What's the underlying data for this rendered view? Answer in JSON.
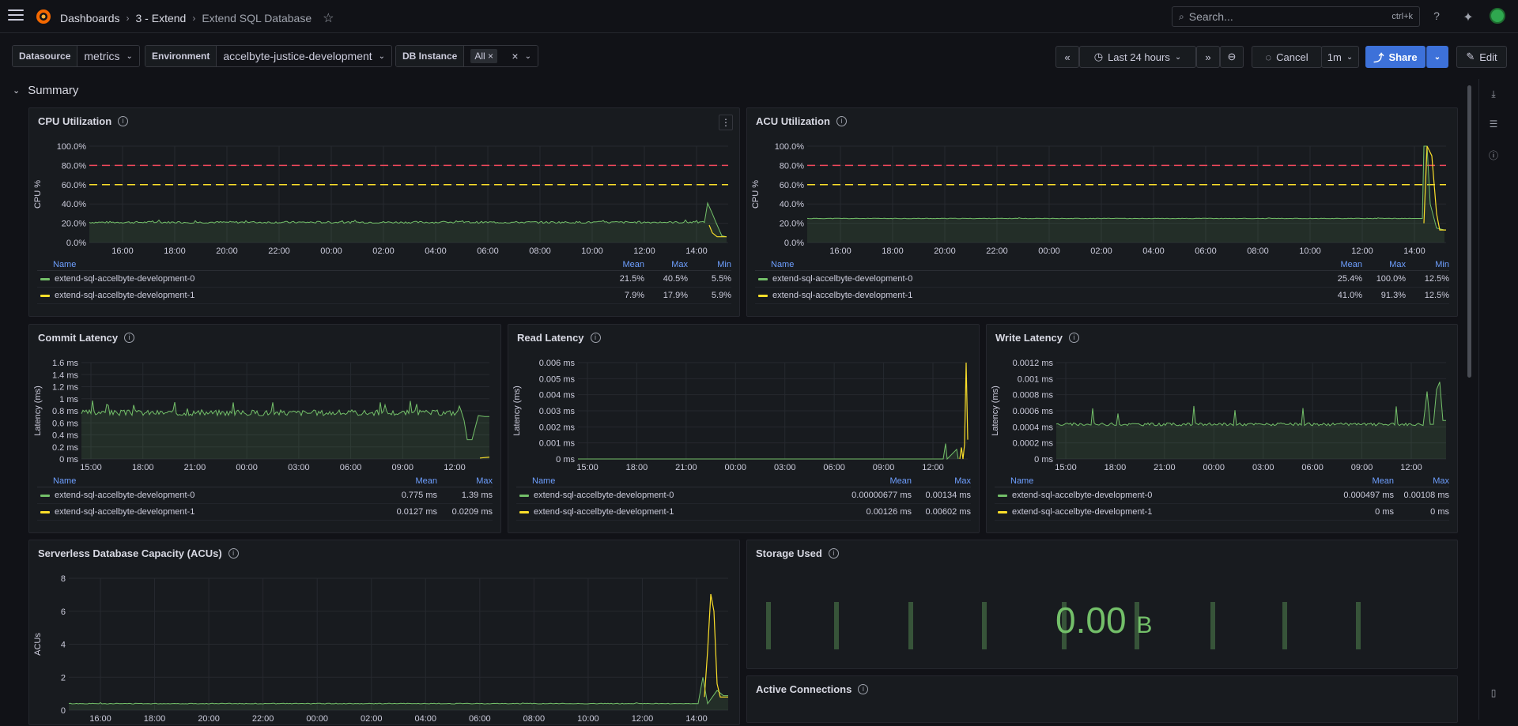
{
  "header": {
    "breadcrumbs": [
      "Dashboards",
      "3 - Extend",
      "Extend SQL Database"
    ],
    "search_placeholder": "Search...",
    "search_shortcut": "ctrl+k"
  },
  "variables": [
    {
      "label": "Datasource",
      "value": "metrics"
    },
    {
      "label": "Environment",
      "value": "accelbyte-justice-development"
    },
    {
      "label": "DB Instance",
      "value": "All"
    }
  ],
  "toolbar": {
    "time_range": "Last 24 hours",
    "cancel_label": "Cancel",
    "refresh_interval": "1m",
    "share_label": "Share",
    "edit_label": "Edit"
  },
  "section_title": "Summary",
  "colors": {
    "series0": "#73bf69",
    "series1": "#fade2a",
    "threshold_red": "#f2495c",
    "threshold_yellow": "#fade2a",
    "accent": "#3d71d9"
  },
  "panels": {
    "cpu": {
      "title": "CPU Utilization",
      "ylabel": "CPU %",
      "yticks": [
        "100.0%",
        "80.0%",
        "60.0%",
        "40.0%",
        "20.0%",
        "0.0%"
      ],
      "xticks": [
        "16:00",
        "18:00",
        "20:00",
        "22:00",
        "00:00",
        "02:00",
        "04:00",
        "06:00",
        "08:00",
        "10:00",
        "12:00",
        "14:00"
      ],
      "legend_cols": [
        "Name",
        "Mean",
        "Max",
        "Min"
      ],
      "rows": [
        {
          "name": "extend-sql-accelbyte-development-0",
          "vals": [
            "21.5%",
            "40.5%",
            "5.5%"
          ]
        },
        {
          "name": "extend-sql-accelbyte-development-1",
          "vals": [
            "7.9%",
            "17.9%",
            "5.9%"
          ]
        }
      ]
    },
    "acu": {
      "title": "ACU Utilization",
      "ylabel": "CPU %",
      "yticks": [
        "100.0%",
        "80.0%",
        "60.0%",
        "40.0%",
        "20.0%",
        "0.0%"
      ],
      "xticks": [
        "16:00",
        "18:00",
        "20:00",
        "22:00",
        "00:00",
        "02:00",
        "04:00",
        "06:00",
        "08:00",
        "10:00",
        "12:00",
        "14:00"
      ],
      "legend_cols": [
        "Name",
        "Mean",
        "Max",
        "Min"
      ],
      "rows": [
        {
          "name": "extend-sql-accelbyte-development-0",
          "vals": [
            "25.4%",
            "100.0%",
            "12.5%"
          ]
        },
        {
          "name": "extend-sql-accelbyte-development-1",
          "vals": [
            "41.0%",
            "91.3%",
            "12.5%"
          ]
        }
      ]
    },
    "commit": {
      "title": "Commit Latency",
      "ylabel": "Latency (ms)",
      "yticks": [
        "1.6 ms",
        "1.4 ms",
        "1.2 ms",
        "1 ms",
        "0.8 ms",
        "0.6 ms",
        "0.4 ms",
        "0.2 ms",
        "0 ms"
      ],
      "xticks": [
        "15:00",
        "18:00",
        "21:00",
        "00:00",
        "03:00",
        "06:00",
        "09:00",
        "12:00"
      ],
      "legend_cols": [
        "Name",
        "Mean",
        "Max"
      ],
      "rows": [
        {
          "name": "extend-sql-accelbyte-development-0",
          "vals": [
            "0.775 ms",
            "1.39 ms"
          ]
        },
        {
          "name": "extend-sql-accelbyte-development-1",
          "vals": [
            "0.0127 ms",
            "0.0209 ms"
          ]
        }
      ]
    },
    "read": {
      "title": "Read Latency",
      "ylabel": "Latency (ms)",
      "yticks": [
        "0.006 ms",
        "0.005 ms",
        "0.004 ms",
        "0.003 ms",
        "0.002 ms",
        "0.001 ms",
        "0 ms"
      ],
      "xticks": [
        "15:00",
        "18:00",
        "21:00",
        "00:00",
        "03:00",
        "06:00",
        "09:00",
        "12:00"
      ],
      "legend_cols": [
        "Name",
        "Mean",
        "Max"
      ],
      "rows": [
        {
          "name": "extend-sql-accelbyte-development-0",
          "vals": [
            "0.00000677 ms",
            "0.00134 ms"
          ]
        },
        {
          "name": "extend-sql-accelbyte-development-1",
          "vals": [
            "0.00126 ms",
            "0.00602 ms"
          ]
        }
      ]
    },
    "write": {
      "title": "Write Latency",
      "ylabel": "Latency (ms)",
      "yticks": [
        "0.0012 ms",
        "0.001 ms",
        "0.0008 ms",
        "0.0006 ms",
        "0.0004 ms",
        "0.0002 ms",
        "0 ms"
      ],
      "xticks": [
        "15:00",
        "18:00",
        "21:00",
        "00:00",
        "03:00",
        "06:00",
        "09:00",
        "12:00"
      ],
      "legend_cols": [
        "Name",
        "Mean",
        "Max"
      ],
      "rows": [
        {
          "name": "extend-sql-accelbyte-development-0",
          "vals": [
            "0.000497 ms",
            "0.00108 ms"
          ]
        },
        {
          "name": "extend-sql-accelbyte-development-1",
          "vals": [
            "0 ms",
            "0 ms"
          ]
        }
      ]
    },
    "capacity": {
      "title": "Serverless Database Capacity (ACUs)",
      "ylabel": "ACUs",
      "yticks": [
        "8",
        "6",
        "4",
        "2",
        "0"
      ],
      "xticks": [
        "16:00",
        "18:00",
        "20:00",
        "22:00",
        "00:00",
        "02:00",
        "04:00",
        "06:00",
        "08:00",
        "10:00",
        "12:00",
        "14:00"
      ]
    },
    "storage": {
      "title": "Storage Used",
      "value": "0.00",
      "unit": "B"
    },
    "connections": {
      "title": "Active Connections"
    }
  }
}
